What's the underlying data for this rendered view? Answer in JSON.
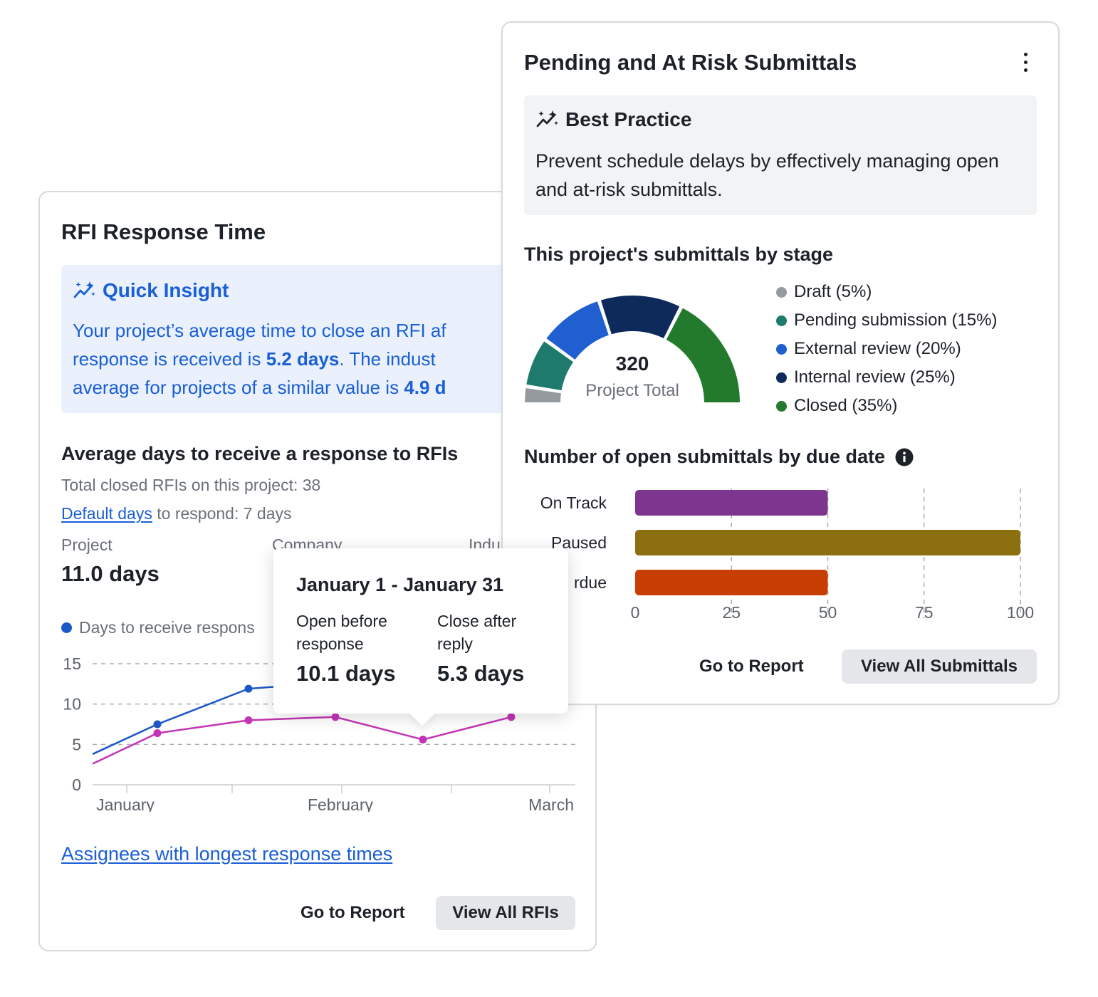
{
  "rfi_card": {
    "title": "RFI Response Time",
    "insight": {
      "title": "Quick Insight",
      "line1": "Your project’s average time to close an RFI af",
      "line2_a": "response is received is ",
      "line2_b": "5.2 days",
      "line2_c": ".  The indust",
      "line3_a": "average for projects of a similar value is ",
      "line3_b": "4.9 d"
    },
    "section_title": "Average days to receive a response to RFIs",
    "total_closed": "Total closed RFIs on this project: 38",
    "default_days_link": "Default days",
    "default_days_rest": " to respond: 7 days",
    "stats": [
      {
        "label": "Project",
        "value": "11.0 days"
      },
      {
        "label": "Company",
        "value": ""
      },
      {
        "label": "Indu",
        "value": ""
      }
    ],
    "legend_label": "Days to receive respons",
    "assignees_link": "Assignees with longest response times",
    "go_to_report": "Go to Report",
    "view_all": "View All RFIs",
    "colors": {
      "accent": "#1a5fd6",
      "series_a": "#1b57c7",
      "series_b": "#c334b4"
    }
  },
  "tooltip": {
    "title": "January 1 - January 31",
    "open_label": "Open before response",
    "open_value": "10.1 days",
    "close_label": "Close after reply",
    "close_value": "5.3 days"
  },
  "sub_card": {
    "title": "Pending and At Risk Submittals",
    "menu_icon": "kebab-icon",
    "best_practice": {
      "title": "Best Practice",
      "text": "Prevent schedule delays by effectively managing open and at-risk submittals."
    },
    "stage_title": "This project's submittals by stage",
    "gauge": {
      "total": "320",
      "total_label": "Project Total"
    },
    "legend": [
      {
        "label": "Draft (5%)",
        "color": "#949a9e"
      },
      {
        "label": "Pending submission (15%)",
        "color": "#1e7a6c"
      },
      {
        "label": "External review (20%)",
        "color": "#1f5fcf"
      },
      {
        "label": "Internal review (25%)",
        "color": "#0e2a5a"
      },
      {
        "label": "Closed (35%)",
        "color": "#237a2d"
      }
    ],
    "due_title": "Number of open submittals by due date",
    "go_to_report": "Go to Report",
    "view_all": "View All Submittals"
  },
  "chart_data": [
    {
      "type": "pie",
      "title": "This project's submittals by stage",
      "categories": [
        "Draft",
        "Pending submission",
        "External review",
        "Internal review",
        "Closed"
      ],
      "values": [
        5,
        15,
        20,
        25,
        35
      ],
      "colors": [
        "#949a9e",
        "#1e7a6c",
        "#1f5fcf",
        "#0e2a5a",
        "#237a2d"
      ]
    },
    {
      "type": "bar",
      "title": "Number of open submittals by due date",
      "orientation": "horizontal",
      "categories": [
        "On Track",
        "Paused",
        "rdue"
      ],
      "values": [
        50,
        100,
        50
      ],
      "colors": [
        "#7d3590",
        "#8c700f",
        "#c83f03"
      ],
      "xlim": [
        0,
        100
      ],
      "xticks": [
        "0",
        "25",
        "50",
        "75",
        "100"
      ],
      "grid": "dashed-vertical"
    },
    {
      "type": "line",
      "title": "",
      "x": [
        0,
        1,
        2,
        3,
        4,
        5
      ],
      "series": [
        {
          "name": "Days to receive respons",
          "color": "#1b57c7",
          "values": [
            3.8,
            7.5,
            11.9,
            12.7,
            null,
            null
          ]
        },
        {
          "color": "#c334b4",
          "values": [
            2.6,
            6.4,
            8.0,
            8.4,
            5.6,
            8.4
          ]
        }
      ],
      "ylim": [
        0,
        15
      ],
      "yticks": [
        "0",
        "5",
        "10",
        "15"
      ],
      "xticks": [
        "January",
        "February",
        "March"
      ],
      "grid": "dashed-horizontal"
    }
  ]
}
